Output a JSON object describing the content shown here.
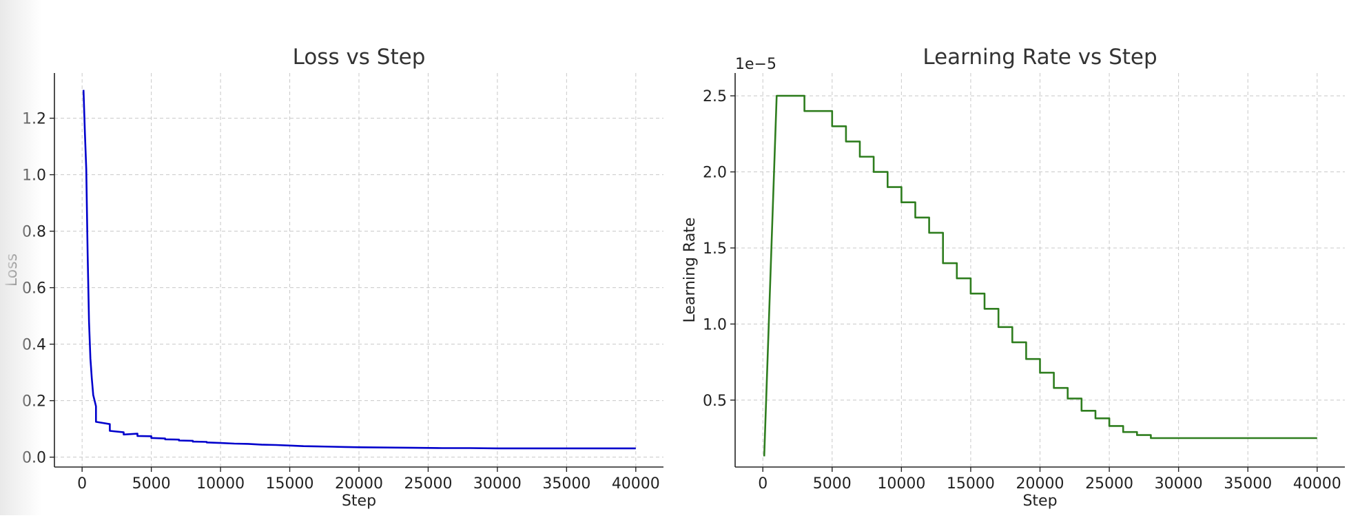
{
  "chart_data": [
    {
      "type": "line",
      "title": "Loss vs Step",
      "xlabel": "Step",
      "ylabel": "Loss",
      "xlim": [
        -2000,
        42000
      ],
      "ylim": [
        -0.035,
        1.36
      ],
      "xticks": [
        0,
        5000,
        10000,
        15000,
        20000,
        25000,
        30000,
        35000,
        40000
      ],
      "xtick_labels": [
        "0",
        "5000",
        "10000",
        "15000",
        "20000",
        "25000",
        "30000",
        "35000",
        "40000"
      ],
      "yticks": [
        0.0,
        0.2,
        0.4,
        0.6,
        0.8,
        1.0,
        1.2
      ],
      "ytick_labels": [
        "0.0",
        "0.2",
        "0.4",
        "0.6",
        "0.8",
        "1.0",
        "1.2"
      ],
      "grid": true,
      "color": "#0000cc",
      "series": [
        {
          "x": [
            100,
            200,
            300,
            400,
            500,
            600,
            700,
            800,
            900,
            1000,
            1000,
            2000,
            2000,
            3000,
            3000,
            4000,
            4000,
            5000,
            5000,
            6000,
            6000,
            7000,
            7000,
            8000,
            8000,
            9000,
            9000,
            10000,
            11000,
            12000,
            13000,
            14000,
            15000,
            16000,
            17000,
            18000,
            19000,
            20000,
            22000,
            24000,
            26000,
            28000,
            30000,
            32000,
            34000,
            36000,
            38000,
            40000
          ],
          "y": [
            1.3,
            1.15,
            1.02,
            0.72,
            0.48,
            0.35,
            0.28,
            0.22,
            0.2,
            0.18,
            0.125,
            0.117,
            0.093,
            0.088,
            0.08,
            0.083,
            0.075,
            0.074,
            0.068,
            0.066,
            0.063,
            0.062,
            0.059,
            0.058,
            0.055,
            0.054,
            0.052,
            0.05,
            0.048,
            0.047,
            0.044,
            0.043,
            0.041,
            0.039,
            0.038,
            0.037,
            0.036,
            0.035,
            0.034,
            0.033,
            0.032,
            0.032,
            0.031,
            0.031,
            0.031,
            0.031,
            0.031,
            0.031
          ]
        }
      ]
    },
    {
      "type": "line",
      "title": "Learning Rate vs Step",
      "xlabel": "Step",
      "ylabel": "Learning Rate",
      "y_offset_label": "1e−5",
      "xlim": [
        -2000,
        42000
      ],
      "ylim": [
        0.06,
        2.65
      ],
      "xticks": [
        0,
        5000,
        10000,
        15000,
        20000,
        25000,
        30000,
        35000,
        40000
      ],
      "xtick_labels": [
        "0",
        "5000",
        "10000",
        "15000",
        "20000",
        "25000",
        "30000",
        "35000",
        "40000"
      ],
      "yticks": [
        0.5,
        1.0,
        1.5,
        2.0,
        2.5
      ],
      "ytick_labels": [
        "0.5",
        "1.0",
        "1.5",
        "2.0",
        "2.5"
      ],
      "grid": true,
      "color": "#2e7d1e",
      "series": [
        {
          "x": [
            100,
            1000,
            3000,
            3000,
            5000,
            5000,
            6000,
            6000,
            7000,
            7000,
            8000,
            8000,
            9000,
            9000,
            10000,
            10000,
            11000,
            11000,
            12000,
            12000,
            13000,
            13000,
            14000,
            14000,
            15000,
            15000,
            16000,
            16000,
            17000,
            17000,
            18000,
            18000,
            19000,
            19000,
            20000,
            20000,
            21000,
            21000,
            22000,
            22000,
            23000,
            23000,
            24000,
            24000,
            25000,
            25000,
            26000,
            26000,
            27000,
            27000,
            28000,
            28000,
            29000,
            29000,
            40000
          ],
          "y": [
            0.13,
            2.5,
            2.5,
            2.4,
            2.4,
            2.3,
            2.3,
            2.2,
            2.2,
            2.1,
            2.1,
            2.0,
            2.0,
            1.9,
            1.9,
            1.8,
            1.8,
            1.7,
            1.7,
            1.6,
            1.6,
            1.4,
            1.4,
            1.3,
            1.3,
            1.2,
            1.2,
            1.1,
            1.1,
            0.98,
            0.98,
            0.88,
            0.88,
            0.77,
            0.77,
            0.68,
            0.68,
            0.58,
            0.58,
            0.51,
            0.51,
            0.43,
            0.43,
            0.38,
            0.38,
            0.33,
            0.33,
            0.29,
            0.29,
            0.27,
            0.27,
            0.25,
            0.25,
            0.25,
            0.25
          ]
        }
      ]
    }
  ]
}
